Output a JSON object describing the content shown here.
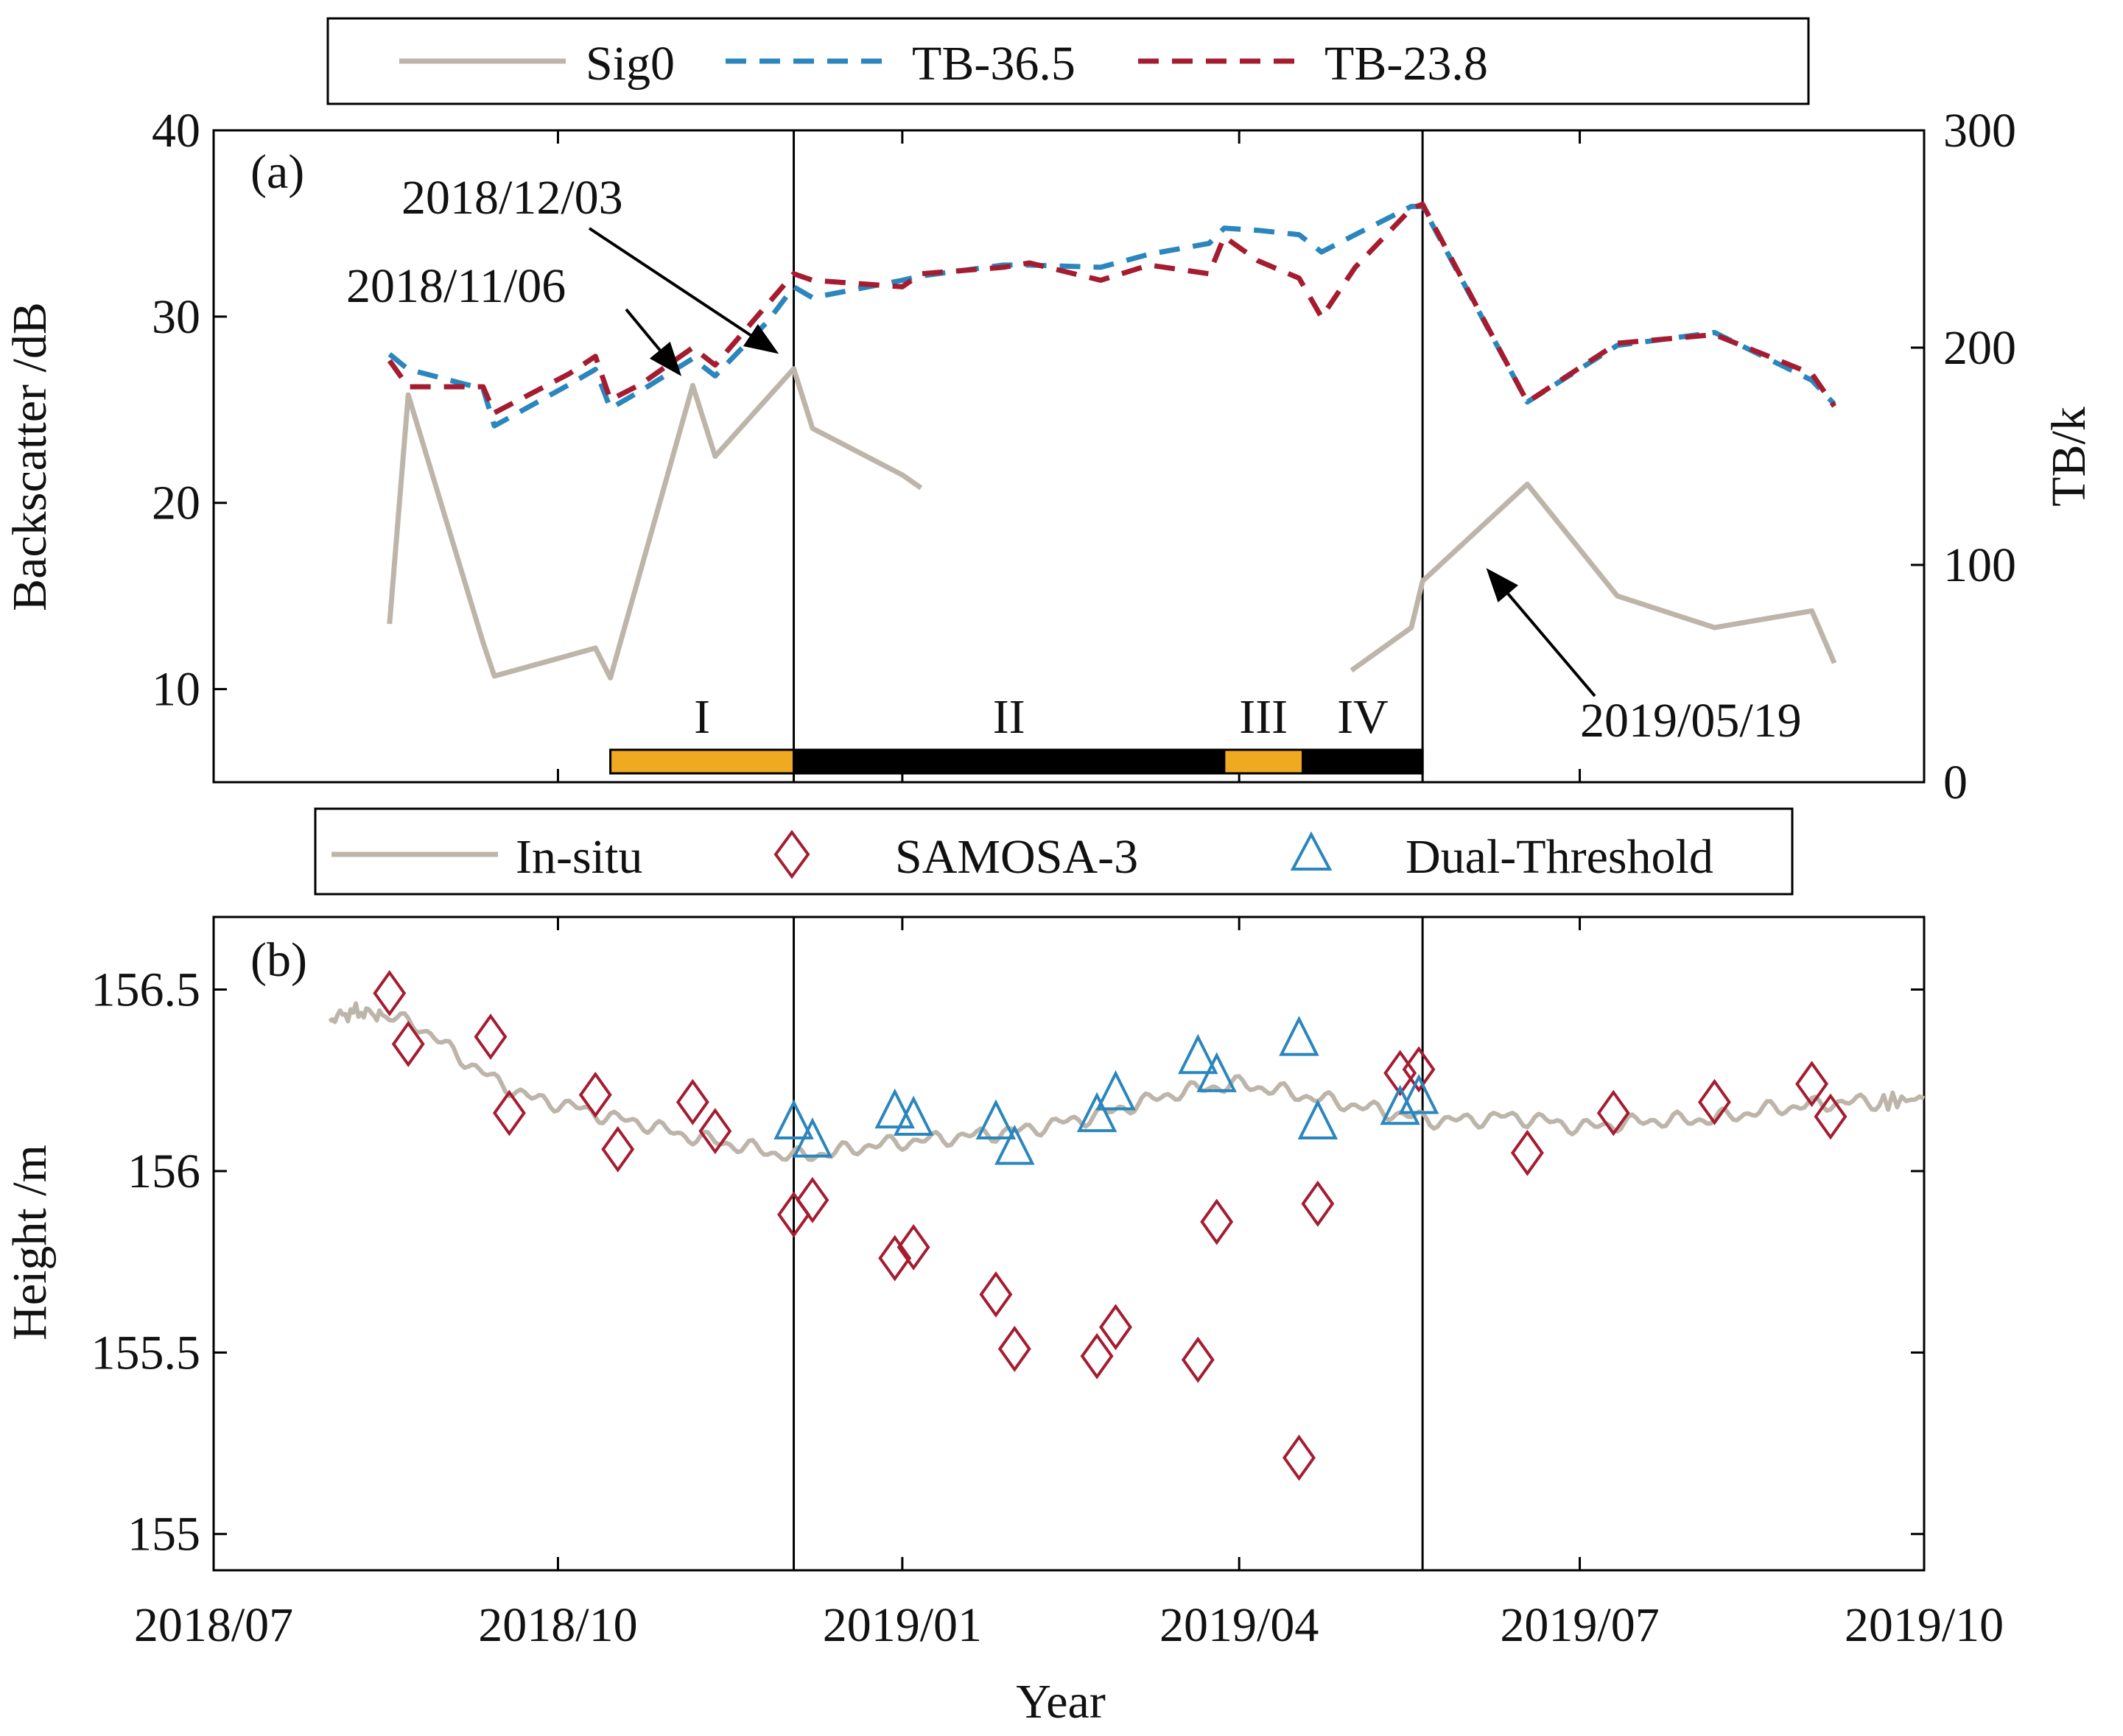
{
  "colors": {
    "sig0": "#bdb5aa",
    "tb365": "#2a86bd",
    "tb238": "#a51c30",
    "insitu": "#bdb5aa",
    "samosa": "#a51c30",
    "dual": "#2a86bd",
    "phase_orange": "#efaa22",
    "phase_black": "#000000"
  },
  "x_axis": {
    "label": "Year",
    "ticks": [
      "2018/07",
      "2018/10",
      "2019/01",
      "2019/04",
      "2019/07",
      "2019/10"
    ],
    "tick_days": [
      0,
      92,
      184,
      274,
      365,
      457
    ],
    "range_days": [
      0,
      457
    ]
  },
  "chart_data": [
    {
      "id": "a",
      "type": "line",
      "panel_label": "(a)",
      "ylabel": "Backscatter /dB",
      "y2label": "TB/k",
      "ylim": [
        5,
        40
      ],
      "y2lim": [
        0,
        300
      ],
      "yticks": [
        10,
        20,
        30,
        40
      ],
      "y2ticks": [
        0,
        100,
        200,
        300
      ],
      "legend": {
        "placement": "top",
        "entries": [
          "Sig0",
          "TB-36.5",
          "TB-23.8"
        ]
      },
      "vertical_lines_days": [
        155,
        323
      ],
      "series": [
        {
          "name": "Sig0",
          "axis": "left",
          "style": "solid",
          "segments": [
            [
              [
                47,
                13.5
              ],
              [
                52,
                25.8
              ],
              [
                72,
                12.5
              ],
              [
                75,
                10.7
              ],
              [
                102,
                12.2
              ],
              [
                106,
                10.6
              ],
              [
                128,
                26.3
              ],
              [
                134,
                22.5
              ],
              [
                155,
                27.2
              ],
              [
                160,
                24.0
              ],
              [
                184,
                21.5
              ],
              [
                189,
                20.8
              ]
            ],
            [
              [
                304,
                11.0
              ],
              [
                320,
                13.3
              ],
              [
                323,
                15.8
              ],
              [
                351,
                21.0
              ],
              [
                375,
                15.0
              ],
              [
                401,
                13.3
              ],
              [
                427,
                14.2
              ],
              [
                433,
                11.4
              ]
            ]
          ]
        },
        {
          "name": "TB-36.5",
          "axis": "right",
          "style": "dashed",
          "segments": [
            [
              [
                47,
                197
              ],
              [
                52,
                190
              ],
              [
                72,
                181
              ],
              [
                75,
                164
              ],
              [
                95,
                183
              ],
              [
                102,
                190
              ],
              [
                106,
                172
              ],
              [
                114,
                180
              ],
              [
                128,
                195
              ],
              [
                134,
                187
              ],
              [
                148,
                212
              ],
              [
                155,
                228
              ],
              [
                160,
                223
              ],
              [
                184,
                231
              ],
              [
                189,
                233
              ],
              [
                211,
                238
              ],
              [
                218,
                238
              ],
              [
                237,
                237
              ],
              [
                250,
                243
              ],
              [
                266,
                248
              ],
              [
                270,
                255
              ],
              [
                279,
                254
              ],
              [
                290,
                252
              ],
              [
                296,
                244
              ],
              [
                305,
                252
              ],
              [
                320,
                265
              ],
              [
                323,
                265
              ],
              [
                351,
                175
              ],
              [
                375,
                201
              ],
              [
                401,
                207
              ],
              [
                427,
                185
              ],
              [
                433,
                174
              ]
            ]
          ]
        },
        {
          "name": "TB-23.8",
          "axis": "right",
          "style": "dashed",
          "segments": [
            [
              [
                47,
                194
              ],
              [
                52,
                182
              ],
              [
                72,
                182
              ],
              [
                75,
                170
              ],
              [
                95,
                188
              ],
              [
                102,
                196
              ],
              [
                106,
                176
              ],
              [
                114,
                183
              ],
              [
                128,
                200
              ],
              [
                134,
                192
              ],
              [
                148,
                220
              ],
              [
                155,
                234
              ],
              [
                160,
                231
              ],
              [
                184,
                228
              ],
              [
                189,
                234
              ],
              [
                211,
                237
              ],
              [
                218,
                239
              ],
              [
                237,
                231
              ],
              [
                250,
                238
              ],
              [
                266,
                234
              ],
              [
                270,
                251
              ],
              [
                279,
                240
              ],
              [
                290,
                232
              ],
              [
                296,
                214
              ],
              [
                305,
                237
              ],
              [
                320,
                264
              ],
              [
                323,
                266
              ],
              [
                351,
                175
              ],
              [
                375,
                202
              ],
              [
                401,
                206
              ],
              [
                427,
                188
              ],
              [
                433,
                173
              ]
            ]
          ]
        }
      ],
      "annotations": [
        {
          "text": "2018/12/03",
          "target": [
            151,
            28.0
          ]
        },
        {
          "text": "2018/11/06",
          "target": [
            125,
            26.8
          ]
        },
        {
          "text": "2019/05/19",
          "target": [
            340,
            16.5
          ]
        }
      ],
      "phases": [
        {
          "label": "I",
          "start": 106,
          "end": 155,
          "color": "orange"
        },
        {
          "label": "II",
          "start": 155,
          "end": 270,
          "color": "black"
        },
        {
          "label": "III",
          "start": 270,
          "end": 291,
          "color": "orange"
        },
        {
          "label": "IV",
          "start": 291,
          "end": 323,
          "color": "black"
        }
      ]
    },
    {
      "id": "b",
      "type": "scatter",
      "panel_label": "(b)",
      "ylabel": "Height /m",
      "ylim": [
        154.9,
        156.7
      ],
      "yticks": [
        155,
        155.5,
        156,
        156.5
      ],
      "ytick_labels": [
        "155",
        "155.5",
        "156",
        "156.5"
      ],
      "legend": {
        "placement": "top",
        "entries": [
          "In-situ",
          "SAMOSA-3",
          "Dual-Threshold"
        ]
      },
      "vertical_lines_days": [
        155,
        323
      ],
      "series": [
        {
          "name": "In-situ",
          "type": "line",
          "points": [
            [
              31,
              156.42
            ],
            [
              38,
              156.44
            ],
            [
              45,
              156.43
            ],
            [
              55,
              156.4
            ],
            [
              65,
              156.32
            ],
            [
              75,
              156.25
            ],
            [
              85,
              156.2
            ],
            [
              95,
              156.18
            ],
            [
              105,
              156.15
            ],
            [
              115,
              156.13
            ],
            [
              125,
              156.1
            ],
            [
              135,
              156.08
            ],
            [
              145,
              156.06
            ],
            [
              155,
              156.04
            ],
            [
              165,
              156.05
            ],
            [
              175,
              156.07
            ],
            [
              185,
              156.08
            ],
            [
              195,
              156.09
            ],
            [
              205,
              156.1
            ],
            [
              215,
              156.11
            ],
            [
              225,
              156.13
            ],
            [
              235,
              156.15
            ],
            [
              245,
              156.18
            ],
            [
              255,
              156.21
            ],
            [
              265,
              156.23
            ],
            [
              275,
              156.24
            ],
            [
              285,
              156.22
            ],
            [
              295,
              156.2
            ],
            [
              305,
              156.18
            ],
            [
              315,
              156.16
            ],
            [
              325,
              156.14
            ],
            [
              335,
              156.14
            ],
            [
              345,
              156.15
            ],
            [
              355,
              156.14
            ],
            [
              365,
              156.12
            ],
            [
              375,
              156.13
            ],
            [
              385,
              156.14
            ],
            [
              395,
              156.14
            ],
            [
              405,
              156.15
            ],
            [
              415,
              156.17
            ],
            [
              425,
              156.18
            ],
            [
              435,
              156.19
            ],
            [
              445,
              156.19
            ],
            [
              457,
              156.2
            ]
          ]
        },
        {
          "name": "SAMOSA-3",
          "type": "scatter",
          "marker": "diamond",
          "points": [
            [
              47,
              156.49
            ],
            [
              52,
              156.35
            ],
            [
              74,
              156.37
            ],
            [
              79,
              156.16
            ],
            [
              102,
              156.21
            ],
            [
              108,
              156.06
            ],
            [
              128,
              156.19
            ],
            [
              134,
              156.11
            ],
            [
              155,
              155.88
            ],
            [
              160,
              155.92
            ],
            [
              182,
              155.76
            ],
            [
              187,
              155.79
            ],
            [
              209,
              155.66
            ],
            [
              214,
              155.51
            ],
            [
              236,
              155.49
            ],
            [
              241,
              155.57
            ],
            [
              263,
              155.48
            ],
            [
              268,
              155.86
            ],
            [
              290,
              155.21
            ],
            [
              295,
              155.91
            ],
            [
              317,
              156.27
            ],
            [
              322,
              156.28
            ],
            [
              351,
              156.05
            ],
            [
              374,
              156.16
            ],
            [
              401,
              156.19
            ],
            [
              427,
              156.24
            ],
            [
              432,
              156.15
            ]
          ]
        },
        {
          "name": "Dual-Threshold",
          "type": "scatter",
          "marker": "triangle",
          "points": [
            [
              155,
              156.14
            ],
            [
              160,
              156.09
            ],
            [
              182,
              156.17
            ],
            [
              187,
              156.15
            ],
            [
              209,
              156.14
            ],
            [
              214,
              156.07
            ],
            [
              236,
              156.16
            ],
            [
              241,
              156.22
            ],
            [
              263,
              156.32
            ],
            [
              268,
              156.27
            ],
            [
              290,
              156.37
            ],
            [
              295,
              156.14
            ],
            [
              317,
              156.18
            ],
            [
              322,
              156.21
            ]
          ]
        }
      ]
    }
  ]
}
